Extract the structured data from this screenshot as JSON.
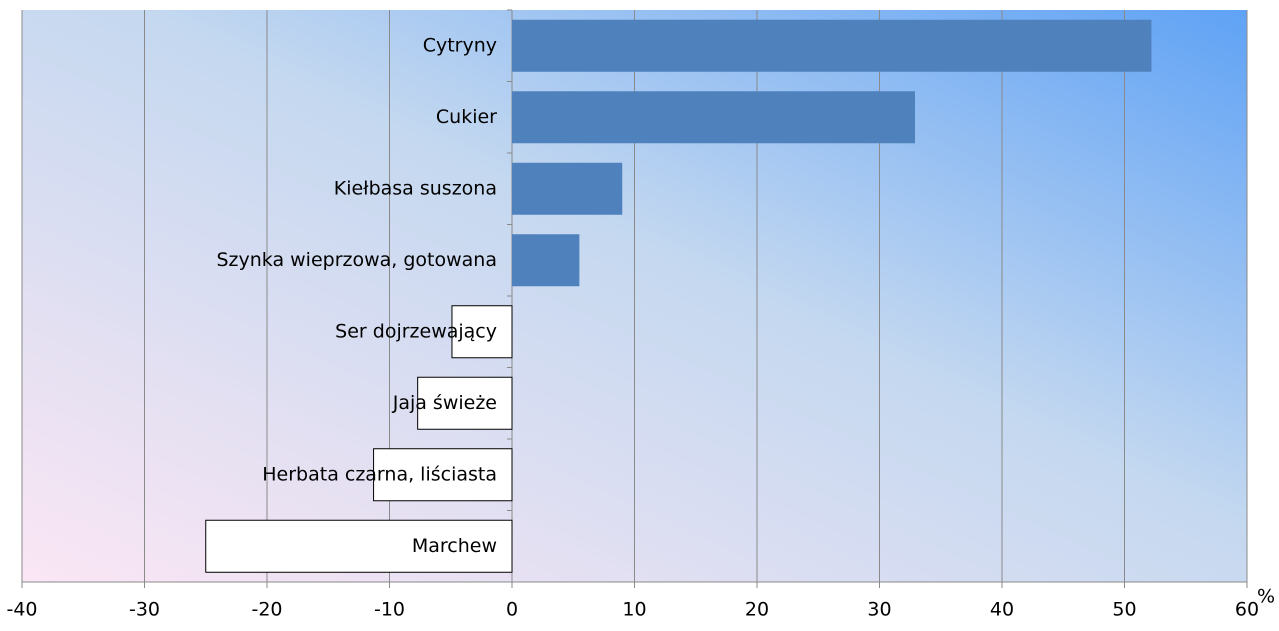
{
  "chart_data": {
    "type": "barh",
    "categories": [
      "Cytryny",
      "Cukier",
      "Kiełbasa suszona",
      "Szynka wieprzowa, gotowana",
      "Ser dojrzewający",
      "Jaja świeże",
      "Herbata czarna, liściasta",
      "Marchew"
    ],
    "values": [
      52.2,
      32.9,
      9.0,
      5.5,
      -4.9,
      -7.7,
      -11.3,
      -25.0
    ],
    "color": "#4f81bd",
    "negative_color": "#ffffff",
    "x_label": "%",
    "xlim": [
      -40,
      60
    ],
    "xticks": [
      -40,
      -30,
      -20,
      -10,
      0,
      10,
      20,
      30,
      40,
      50,
      60
    ],
    "grid": true
  }
}
